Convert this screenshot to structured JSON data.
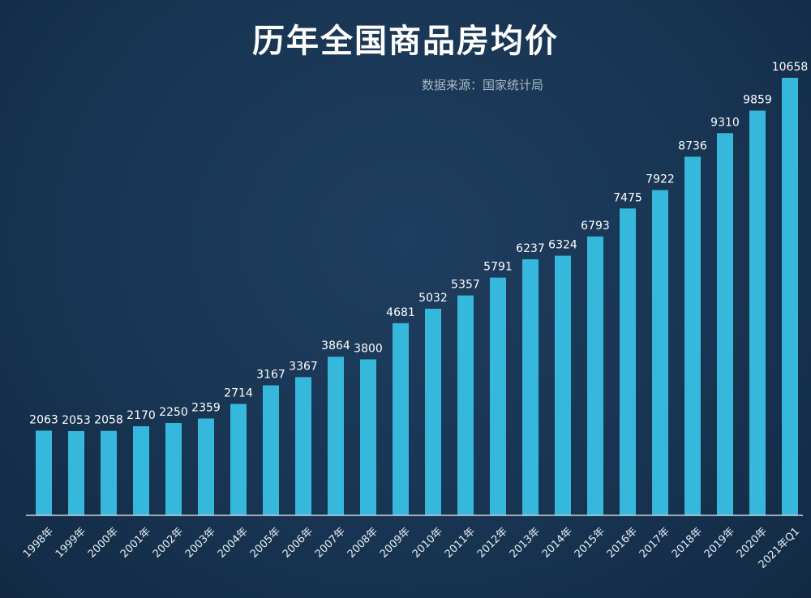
{
  "chart_data": {
    "type": "bar",
    "title": "历年全国商品房均价",
    "source": "数据来源：国家统计局",
    "categories": [
      "1998年",
      "1999年",
      "2000年",
      "2001年",
      "2002年",
      "2003年",
      "2004年",
      "2005年",
      "2006年",
      "2007年",
      "2008年",
      "2009年",
      "2010年",
      "2011年",
      "2012年",
      "2013年",
      "2014年",
      "2015年",
      "2016年",
      "2017年",
      "2018年",
      "2019年",
      "2020年",
      "2021年Q1"
    ],
    "values": [
      2063,
      2053,
      2058,
      2170,
      2250,
      2359,
      2714,
      3167,
      3367,
      3864,
      3800,
      4681,
      5032,
      5357,
      5791,
      6237,
      6324,
      6793,
      7475,
      7922,
      8736,
      9310,
      9859,
      10658
    ],
    "ylim": [
      0,
      10658
    ],
    "xlabel": "",
    "ylabel": "",
    "grid": false,
    "bar_color": "#35b8dc",
    "background_color": "#183553",
    "axis_color": "#c9d6e2"
  }
}
